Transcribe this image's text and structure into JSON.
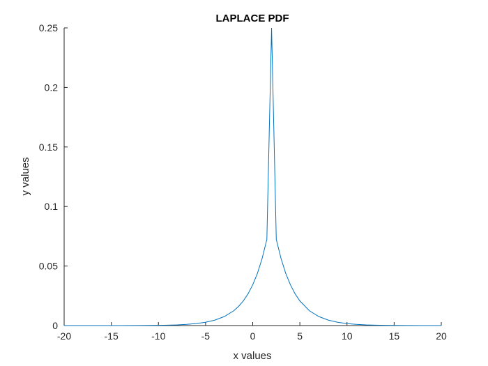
{
  "chart_data": {
    "type": "line",
    "title": "LAPLACE PDF",
    "xlabel": "x values",
    "ylabel": "y values",
    "xlim": [
      -20,
      20
    ],
    "ylim": [
      0,
      0.25
    ],
    "xticks": [
      "-20",
      "-15",
      "-10",
      "-5",
      "0",
      "5",
      "10",
      "15",
      "20"
    ],
    "yticks": [
      "0",
      "0.05",
      "0.1",
      "0.15",
      "0.2",
      "0.25"
    ],
    "grid": false,
    "legend": "none",
    "series": [
      {
        "color": "#0072BD",
        "x": [
          -20,
          -18,
          -16,
          -14,
          -12,
          -10,
          -9,
          -8,
          -7,
          -6,
          -5,
          -4,
          -3,
          -2,
          -1.5,
          -1,
          -0.5,
          0,
          0.5,
          1,
          1.5,
          2,
          2.5,
          3,
          3.5,
          4,
          4.5,
          5,
          6,
          7,
          8,
          9,
          10,
          11,
          12,
          13,
          14,
          16,
          18,
          20
        ],
        "y": [
          0.0,
          0.0,
          0.0,
          0.0,
          0.0001,
          0.0002,
          0.0004,
          0.0006,
          0.001,
          0.0017,
          0.0028,
          0.0046,
          0.0076,
          0.0125,
          0.0161,
          0.0207,
          0.0266,
          0.0342,
          0.0439,
          0.0564,
          0.0724,
          0.25,
          0.0724,
          0.0564,
          0.0439,
          0.0342,
          0.0266,
          0.0207,
          0.0125,
          0.0076,
          0.0046,
          0.0028,
          0.0017,
          0.001,
          0.0006,
          0.0004,
          0.0002,
          0.0001,
          0.0,
          0.0
        ]
      }
    ]
  }
}
